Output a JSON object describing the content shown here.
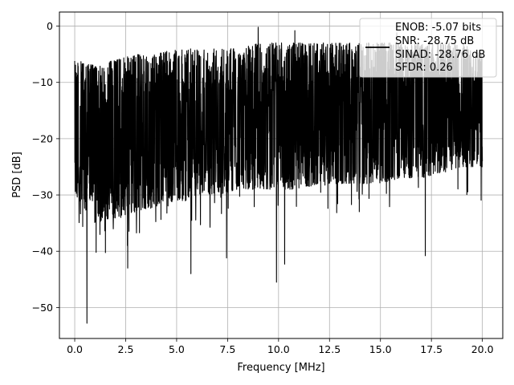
{
  "chart_data": {
    "type": "line",
    "title": "",
    "xlabel": "Frequency [MHz]",
    "ylabel": "PSD [dB]",
    "xlim": [
      -0.75,
      21.0
    ],
    "ylim": [
      -55.5,
      2.5
    ],
    "xticks": [
      0.0,
      2.5,
      5.0,
      7.5,
      10.0,
      12.5,
      15.0,
      17.5,
      20.0
    ],
    "xtick_labels": [
      "0.0",
      "2.5",
      "5.0",
      "7.5",
      "10.0",
      "12.5",
      "15.0",
      "17.5",
      "20.0"
    ],
    "yticks": [
      0,
      -10,
      -20,
      -30,
      -40,
      -50
    ],
    "ytick_labels": [
      "0",
      "−10",
      "−20",
      "−30",
      "−40",
      "−50"
    ],
    "grid": true,
    "legend_position": "top-right",
    "series": [
      {
        "name": "",
        "color": "#000000",
        "x_range": [
          0.0,
          20.0
        ],
        "band_upper_db": [
          -6,
          -7,
          -6,
          -5,
          -5,
          -4,
          -4,
          -4,
          -4,
          -3,
          -3,
          -3,
          -3,
          -3,
          -3,
          -3,
          -3,
          -3,
          -3,
          -3,
          -5
        ],
        "band_lower_db": [
          -30,
          -35,
          -34,
          -33,
          -32,
          -31,
          -30,
          -30,
          -29,
          -29,
          -29,
          -29,
          -28,
          -28,
          -28,
          -28,
          -27,
          -27,
          -26,
          -25,
          -25
        ],
        "notable_points": [
          {
            "x": 0.0,
            "y": -6.2
          },
          {
            "x": 0.6,
            "y": -52.8
          },
          {
            "x": 1.05,
            "y": -40.2
          },
          {
            "x": 2.6,
            "y": -43.0
          },
          {
            "x": 5.7,
            "y": -44.0
          },
          {
            "x": 7.45,
            "y": -41.2
          },
          {
            "x": 9.9,
            "y": -45.5
          },
          {
            "x": 10.3,
            "y": -42.3
          },
          {
            "x": 9.0,
            "y": -0.2
          },
          {
            "x": 10.8,
            "y": -0.8
          },
          {
            "x": 15.8,
            "y": -1.2
          },
          {
            "x": 17.2,
            "y": -40.8
          },
          {
            "x": 20.0,
            "y": -24.0
          }
        ]
      }
    ],
    "legend_entries": [
      "ENOB: -5.07 bits",
      "SNR: -28.75 dB",
      "SINAD: -28.76 dB",
      "SFDR: 0.26"
    ]
  }
}
